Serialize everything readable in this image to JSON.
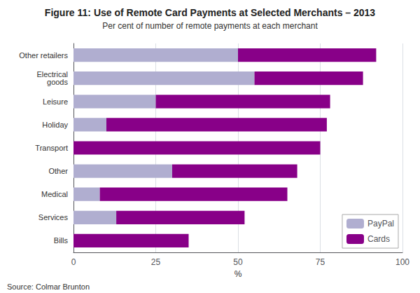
{
  "chart_data": {
    "type": "bar",
    "orientation": "horizontal",
    "stacked": true,
    "title": "Figure 11: Use of Remote Card Payments at Selected Merchants – 2013",
    "subtitle": "Per cent of number of remote payments at each merchant",
    "xlabel": "%",
    "categories": [
      "Bills",
      "Services",
      "Medical",
      "Other",
      "Transport",
      "Holiday",
      "Leisure",
      "Electrical\ngoods",
      "Other retailers"
    ],
    "series": [
      {
        "name": "PayPal",
        "color": "#b0aed0",
        "values": [
          0,
          13,
          8,
          30,
          0,
          10,
          25,
          55,
          50
        ]
      },
      {
        "name": "Cards",
        "color": "#880088",
        "values": [
          35,
          39,
          57,
          38,
          75,
          67,
          53,
          33,
          42
        ]
      }
    ],
    "xlim": [
      0,
      100
    ],
    "xticks": [
      0,
      25,
      50,
      75,
      100
    ],
    "grid": true,
    "legend": "lower right",
    "annotations": [
      "Source:\tColmar Brunton"
    ]
  }
}
